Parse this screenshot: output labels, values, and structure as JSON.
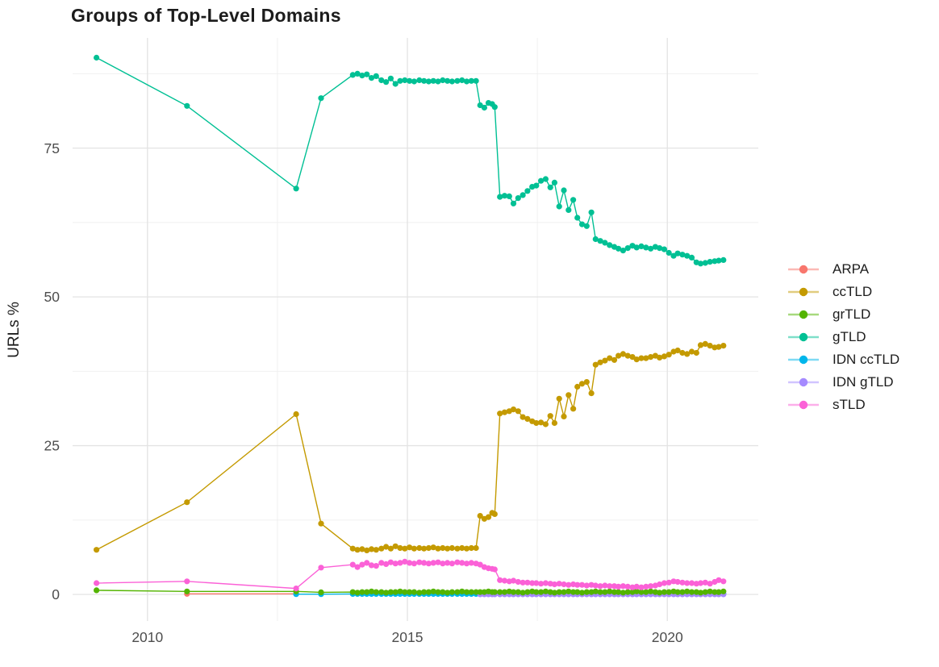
{
  "page": {
    "background": "#ffffff"
  },
  "chart_data": {
    "type": "line",
    "title": "Groups of Top-Level Domains",
    "xlabel": "",
    "ylabel": "URLs %",
    "legend_position": "right",
    "grid": "major+minor",
    "xlim": [
      2008.56,
      2021.75
    ],
    "ylim": [
      -4.47,
      93.52
    ],
    "x_ticks": {
      "major": [
        2010,
        2015,
        2020
      ],
      "minor": [
        2012.5,
        2017.5
      ]
    },
    "y_ticks": {
      "major": [
        0,
        25,
        50,
        75
      ],
      "minor": [
        12.5,
        37.5,
        62.5,
        87.5
      ]
    },
    "grid_colors": {
      "major": "#e3e3e3",
      "minor": "#efefef"
    },
    "axis_text_color": "#4d4d4d",
    "x_segments": {
      "early": [
        2009.02,
        2010.76,
        2012.86,
        2013.34
      ],
      "mid": [
        2013.95,
        2014.04,
        2014.13,
        2014.22,
        2014.31,
        2014.4,
        2014.5,
        2014.59,
        2014.68,
        2014.77,
        2014.86,
        2014.95,
        2015.04,
        2015.13,
        2015.23,
        2015.32,
        2015.41,
        2015.5,
        2015.59,
        2015.68,
        2015.77,
        2015.86,
        2015.96,
        2016.05,
        2016.14,
        2016.23,
        2016.32
      ],
      "trans": [
        2016.4,
        2016.48,
        2016.56,
        2016.63,
        2016.68
      ],
      "right": [
        2016.78,
        2016.87,
        2016.96,
        2017.04,
        2017.13,
        2017.22,
        2017.31,
        2017.4,
        2017.48,
        2017.57,
        2017.66,
        2017.75,
        2017.83,
        2017.92,
        2018.01,
        2018.1,
        2018.19,
        2018.27,
        2018.36,
        2018.45,
        2018.54,
        2018.62,
        2018.71,
        2018.8,
        2018.89,
        2018.98,
        2019.06,
        2019.15,
        2019.24,
        2019.33,
        2019.41,
        2019.5,
        2019.59,
        2019.68,
        2019.77,
        2019.85,
        2019.94,
        2020.03,
        2020.12,
        2020.2,
        2020.29,
        2020.38,
        2020.47,
        2020.56,
        2020.64,
        2020.73,
        2020.82,
        2020.91,
        2020.99,
        2021.08
      ]
    },
    "draw_order": [
      0,
      4,
      5,
      2,
      1,
      3,
      6
    ],
    "series": [
      {
        "name": "ARPA",
        "color": "#F8766D",
        "y": {
          "early": [
            null,
            0.1,
            0.1,
            null
          ],
          "mid": [],
          "trans": [],
          "right": []
        }
      },
      {
        "name": "ccTLD",
        "color": "#C49A00",
        "y": {
          "early": [
            7.5,
            15.5,
            30.3,
            11.9
          ],
          "mid": [
            7.7,
            7.5,
            7.6,
            7.4,
            7.6,
            7.5,
            7.7,
            8.0,
            7.7,
            8.1,
            7.8,
            7.7,
            7.9,
            7.7,
            7.8,
            7.7,
            7.8,
            7.9,
            7.7,
            7.8,
            7.7,
            7.8,
            7.7,
            7.8,
            7.7,
            7.8,
            7.8
          ],
          "trans": [
            13.2,
            12.7,
            13.0,
            13.7,
            13.5
          ],
          "right": [
            30.4,
            30.6,
            30.8,
            31.1,
            30.8,
            29.8,
            29.5,
            29.1,
            28.8,
            28.9,
            28.6,
            30.0,
            28.8,
            32.9,
            29.9,
            33.5,
            31.2,
            34.9,
            35.4,
            35.7,
            33.8,
            38.6,
            39.0,
            39.3,
            39.7,
            39.4,
            40.1,
            40.4,
            40.1,
            39.9,
            39.5,
            39.7,
            39.7,
            39.9,
            40.1,
            39.8,
            40.0,
            40.3,
            40.8,
            41.0,
            40.6,
            40.4,
            40.8,
            40.6,
            41.9,
            42.1,
            41.8,
            41.5,
            41.6,
            41.8
          ]
        }
      },
      {
        "name": "grTLD",
        "color": "#53B400",
        "y": {
          "early": [
            0.7,
            0.5,
            0.5,
            0.35
          ],
          "mid": [
            0.4,
            0.3,
            0.4,
            0.4,
            0.5,
            0.4,
            0.4,
            0.3,
            0.4,
            0.4,
            0.5,
            0.4,
            0.4,
            0.4,
            0.3,
            0.4,
            0.4,
            0.5,
            0.4,
            0.4,
            0.3,
            0.4,
            0.4,
            0.5,
            0.4,
            0.4,
            0.4
          ],
          "trans": [
            0.4,
            0.4,
            0.5,
            0.4,
            0.4
          ],
          "right": [
            0.4,
            0.4,
            0.5,
            0.4,
            0.4,
            0.3,
            0.4,
            0.5,
            0.4,
            0.4,
            0.5,
            0.4,
            0.3,
            0.4,
            0.4,
            0.5,
            0.4,
            0.4,
            0.3,
            0.4,
            0.4,
            0.5,
            0.4,
            0.4,
            0.5,
            0.4,
            0.4,
            0.3,
            0.4,
            0.4,
            0.5,
            0.4,
            0.4,
            0.5,
            0.4,
            0.3,
            0.4,
            0.4,
            0.5,
            0.4,
            0.4,
            0.5,
            0.4,
            0.4,
            0.3,
            0.4,
            0.5,
            0.4,
            0.4,
            0.5
          ]
        }
      },
      {
        "name": "gTLD",
        "color": "#00C094",
        "y": {
          "early": [
            90.2,
            82.1,
            68.2,
            83.4
          ],
          "mid": [
            87.3,
            87.5,
            87.2,
            87.4,
            86.8,
            87.1,
            86.4,
            86.1,
            86.7,
            85.8,
            86.3,
            86.4,
            86.3,
            86.2,
            86.4,
            86.3,
            86.2,
            86.3,
            86.2,
            86.4,
            86.3,
            86.2,
            86.3,
            86.4,
            86.2,
            86.3,
            86.3
          ],
          "trans": [
            82.2,
            81.8,
            82.6,
            82.4,
            81.9
          ],
          "right": [
            66.8,
            67.0,
            66.9,
            65.7,
            66.6,
            67.1,
            67.8,
            68.5,
            68.7,
            69.5,
            69.8,
            68.4,
            69.2,
            65.2,
            67.9,
            64.6,
            66.3,
            63.3,
            62.2,
            61.9,
            64.2,
            59.7,
            59.4,
            59.1,
            58.7,
            58.4,
            58.1,
            57.8,
            58.2,
            58.6,
            58.3,
            58.5,
            58.3,
            58.1,
            58.4,
            58.2,
            58.0,
            57.4,
            56.9,
            57.3,
            57.1,
            56.9,
            56.6,
            55.8,
            55.6,
            55.7,
            55.9,
            56.0,
            56.1,
            56.2
          ]
        }
      },
      {
        "name": "IDN ccTLD",
        "color": "#00B6EB",
        "y": {
          "early": [
            null,
            null,
            0.05,
            0.05
          ],
          "mid": [
            0.08,
            0.08,
            0.08,
            0.08,
            0.08,
            0.08,
            0.08,
            0.08,
            0.08,
            0.08,
            0.08,
            0.08,
            0.08,
            0.08,
            0.08,
            0.08,
            0.08,
            0.08,
            0.08,
            0.08,
            0.08,
            0.08,
            0.08,
            0.08,
            0.08,
            0.08,
            0.08
          ],
          "trans": [
            0.08,
            0.08,
            0.08,
            0.08,
            0.08
          ],
          "right": [
            0.1,
            0.1,
            0.1,
            0.1,
            0.1,
            0.1,
            0.1,
            0.1,
            0.1,
            0.1,
            0.1,
            0.1,
            0.1,
            0.1,
            0.1,
            0.1,
            0.1,
            0.1,
            0.1,
            0.1,
            0.1,
            0.1,
            0.1,
            0.1,
            0.1,
            0.1,
            0.1,
            0.1,
            0.1,
            0.1,
            0.1,
            0.1,
            0.1,
            0.1,
            0.1,
            0.1,
            0.1,
            0.1,
            0.1,
            0.1,
            0.1,
            0.1,
            0.1,
            0.1,
            0.1,
            0.1,
            0.1,
            0.1,
            0.1,
            0.1
          ]
        }
      },
      {
        "name": "IDN gTLD",
        "color": "#A58AFF",
        "y": {
          "early": [],
          "mid": [],
          "trans": [
            0.02,
            0.02,
            0.02,
            0.02,
            0.02
          ],
          "right": [
            0.02,
            0.02,
            0.02,
            0.02,
            0.02,
            0.02,
            0.02,
            0.02,
            0.02,
            0.02,
            0.02,
            0.02,
            0.02,
            0.02,
            0.02,
            0.02,
            0.02,
            0.02,
            0.02,
            0.02,
            0.02,
            0.02,
            0.02,
            0.02,
            0.02,
            0.02,
            0.02,
            0.02,
            0.02,
            0.02,
            0.02,
            0.02,
            0.02,
            0.02,
            0.02,
            0.02,
            0.02,
            0.02,
            0.02,
            0.02,
            0.02,
            0.02,
            0.02,
            0.02,
            0.02,
            0.02,
            0.02,
            0.02,
            0.02,
            0.02
          ]
        }
      },
      {
        "name": "sTLD",
        "color": "#FB61D7",
        "y": {
          "early": [
            1.9,
            2.2,
            1.0,
            4.5
          ],
          "mid": [
            5.0,
            4.6,
            5.0,
            5.3,
            4.9,
            4.8,
            5.3,
            5.1,
            5.4,
            5.2,
            5.3,
            5.5,
            5.3,
            5.2,
            5.4,
            5.3,
            5.2,
            5.3,
            5.4,
            5.2,
            5.3,
            5.2,
            5.4,
            5.3,
            5.2,
            5.3,
            5.2
          ],
          "trans": [
            5.0,
            4.6,
            4.4,
            4.3,
            4.2
          ],
          "right": [
            2.4,
            2.3,
            2.2,
            2.3,
            2.1,
            2.0,
            2.0,
            1.9,
            1.9,
            1.8,
            1.9,
            1.8,
            1.7,
            1.8,
            1.7,
            1.6,
            1.7,
            1.6,
            1.6,
            1.5,
            1.6,
            1.5,
            1.4,
            1.5,
            1.4,
            1.4,
            1.3,
            1.4,
            1.3,
            1.2,
            1.3,
            1.2,
            1.3,
            1.4,
            1.5,
            1.7,
            1.9,
            2.0,
            2.2,
            2.1,
            2.0,
            1.9,
            1.9,
            1.8,
            1.9,
            2.0,
            1.8,
            2.1,
            2.4,
            2.2
          ]
        }
      }
    ]
  }
}
